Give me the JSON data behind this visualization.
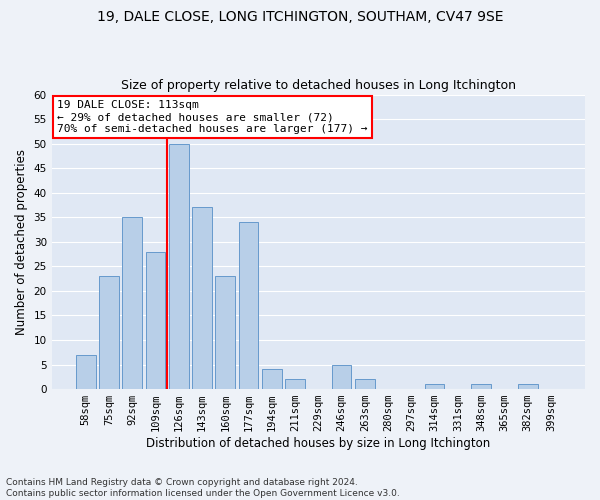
{
  "title": "19, DALE CLOSE, LONG ITCHINGTON, SOUTHAM, CV47 9SE",
  "subtitle": "Size of property relative to detached houses in Long Itchington",
  "xlabel": "Distribution of detached houses by size in Long Itchington",
  "ylabel": "Number of detached properties",
  "categories": [
    "58sqm",
    "75sqm",
    "92sqm",
    "109sqm",
    "126sqm",
    "143sqm",
    "160sqm",
    "177sqm",
    "194sqm",
    "211sqm",
    "229sqm",
    "246sqm",
    "263sqm",
    "280sqm",
    "297sqm",
    "314sqm",
    "331sqm",
    "348sqm",
    "365sqm",
    "382sqm",
    "399sqm"
  ],
  "values": [
    7,
    23,
    35,
    28,
    50,
    37,
    23,
    34,
    4,
    2,
    0,
    5,
    2,
    0,
    0,
    1,
    0,
    1,
    0,
    1,
    0
  ],
  "bar_color": "#b8cfe8",
  "bar_edge_color": "#6699cc",
  "vline_x": 3.5,
  "vline_color": "red",
  "annotation_text": "19 DALE CLOSE: 113sqm\n← 29% of detached houses are smaller (72)\n70% of semi-detached houses are larger (177) →",
  "annotation_box_color": "white",
  "annotation_box_edge": "red",
  "ylim": [
    0,
    60
  ],
  "yticks": [
    0,
    5,
    10,
    15,
    20,
    25,
    30,
    35,
    40,
    45,
    50,
    55,
    60
  ],
  "footnote": "Contains HM Land Registry data © Crown copyright and database right 2024.\nContains public sector information licensed under the Open Government Licence v3.0.",
  "bg_color": "#eef2f8",
  "plot_bg_color": "#e0e8f4",
  "grid_color": "white",
  "title_fontsize": 10,
  "subtitle_fontsize": 9,
  "xlabel_fontsize": 8.5,
  "ylabel_fontsize": 8.5,
  "tick_fontsize": 7.5,
  "footnote_fontsize": 6.5,
  "annotation_fontsize": 8
}
